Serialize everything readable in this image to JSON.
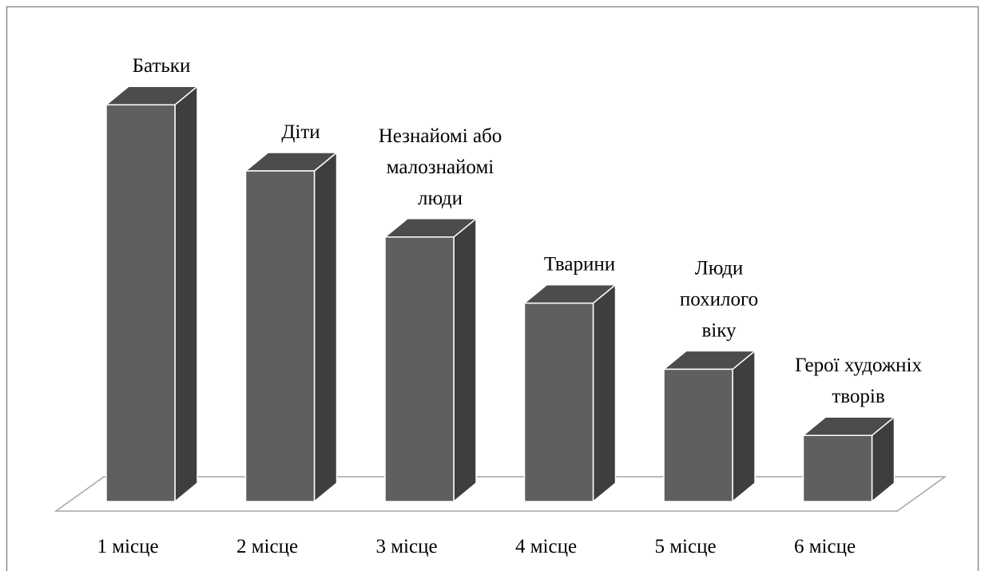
{
  "chart_data": {
    "type": "bar3d",
    "categories": [
      "1 місце",
      "2 місце",
      "3 місце",
      "4 місце",
      "5 місце",
      "6 місце"
    ],
    "values": [
      6,
      5,
      4,
      3,
      2,
      1
    ],
    "labels": [
      [
        "Батьки"
      ],
      [
        "Діти"
      ],
      [
        "Незнайомі або",
        "малознайомі",
        "люди"
      ],
      [
        "Тварини"
      ],
      [
        "Люди",
        "похилого",
        "віку"
      ],
      [
        "Герої художніх",
        "творів"
      ]
    ],
    "color": "#5f5f5f"
  }
}
